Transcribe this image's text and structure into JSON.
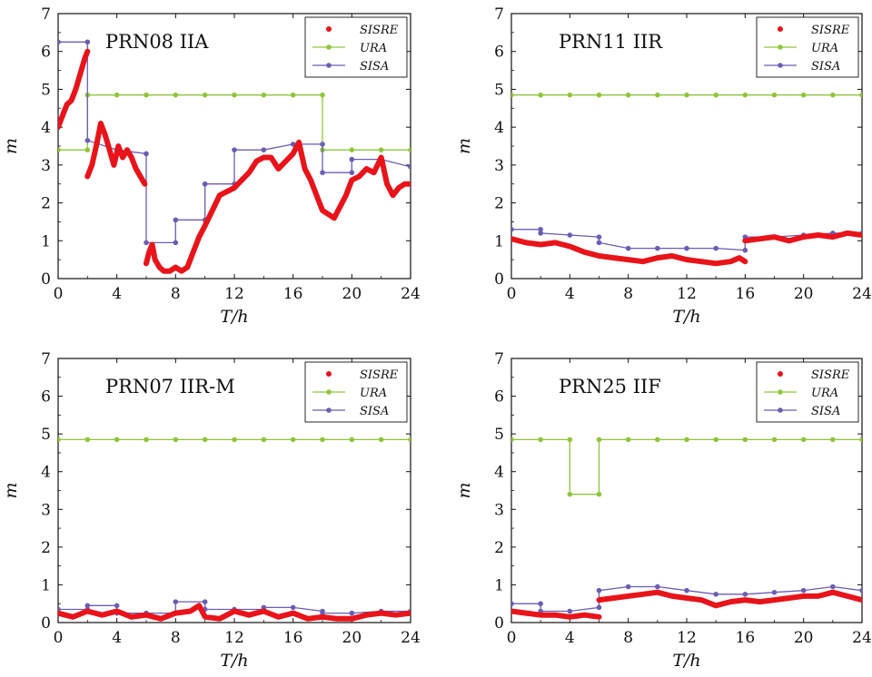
{
  "chart_data": [
    {
      "type": "line",
      "title": "PRN08 IIA",
      "xlabel": "T/h",
      "ylabel": "m",
      "xlim": [
        0,
        24
      ],
      "ylim": [
        0,
        7
      ],
      "xticks": [
        "0",
        "4",
        "8",
        "12",
        "16",
        "20",
        "24"
      ],
      "yticks": [
        "0",
        "1",
        "2",
        "3",
        "4",
        "5",
        "6",
        "7"
      ],
      "legend": "top-right",
      "series": [
        {
          "name": "SISRE",
          "color": "#e8141a",
          "style": "thick",
          "x": [
            0,
            0.3,
            0.6,
            0.9,
            1.2,
            1.5,
            1.8,
            2.0,
            null,
            2.0,
            2.3,
            2.6,
            2.9,
            3.2,
            3.5,
            3.8,
            4.1,
            4.4,
            4.7,
            5.0,
            5.3,
            5.6,
            5.9,
            null,
            6.0,
            6.2,
            6.4,
            6.6,
            6.9,
            7.2,
            7.6,
            8.0,
            8.4,
            8.8,
            9.2,
            9.6,
            10.0,
            10.5,
            11.0,
            11.5,
            12.0,
            12.5,
            13.0,
            13.5,
            14.0,
            14.5,
            15.0,
            15.5,
            16.0,
            16.4,
            16.8,
            17.2,
            17.6,
            18.0,
            18.4,
            18.8,
            19.2,
            19.6,
            20.0,
            20.5,
            21.0,
            21.5,
            22.0,
            22.4,
            22.8,
            23.2,
            23.6,
            24.0
          ],
          "y": [
            4.0,
            4.3,
            4.6,
            4.7,
            5.0,
            5.4,
            5.8,
            6.0,
            null,
            2.7,
            3.0,
            3.5,
            4.1,
            3.8,
            3.4,
            3.0,
            3.5,
            3.2,
            3.4,
            3.2,
            2.9,
            2.7,
            2.5,
            null,
            0.4,
            0.7,
            0.9,
            0.5,
            0.3,
            0.2,
            0.2,
            0.3,
            0.2,
            0.3,
            0.7,
            1.1,
            1.4,
            1.8,
            2.2,
            2.3,
            2.4,
            2.6,
            2.8,
            3.1,
            3.2,
            3.2,
            2.9,
            3.1,
            3.3,
            3.6,
            2.9,
            2.6,
            2.2,
            1.8,
            1.7,
            1.6,
            1.9,
            2.2,
            2.6,
            2.7,
            2.9,
            2.8,
            3.2,
            2.5,
            2.2,
            2.4,
            2.5,
            2.5
          ]
        },
        {
          "name": "URA",
          "color": "#8fc63a",
          "style": "step",
          "x": [
            0,
            2,
            2,
            4,
            6,
            8,
            10,
            12,
            14,
            16,
            18,
            18,
            20,
            22,
            24
          ],
          "y": [
            3.4,
            3.4,
            4.85,
            4.85,
            4.85,
            4.85,
            4.85,
            4.85,
            4.85,
            4.85,
            4.85,
            3.4,
            3.4,
            3.4,
            3.4
          ]
        },
        {
          "name": "SISA",
          "color": "#6b5db3",
          "style": "step",
          "x": [
            0,
            2,
            2,
            4,
            6,
            6,
            8,
            8,
            10,
            10,
            12,
            12,
            14,
            16,
            18,
            18,
            20,
            20,
            22,
            24
          ],
          "y": [
            6.25,
            6.25,
            3.65,
            3.4,
            3.3,
            0.95,
            0.95,
            1.55,
            1.55,
            2.5,
            2.5,
            3.4,
            3.4,
            3.55,
            3.55,
            2.8,
            2.8,
            3.15,
            3.15,
            2.95
          ]
        }
      ]
    },
    {
      "type": "line",
      "title": "PRN11 IIR",
      "xlabel": "T/h",
      "ylabel": "m",
      "xlim": [
        0,
        24
      ],
      "ylim": [
        0,
        7
      ],
      "xticks": [
        "0",
        "4",
        "8",
        "12",
        "16",
        "20",
        "24"
      ],
      "yticks": [
        "0",
        "1",
        "2",
        "3",
        "4",
        "5",
        "6",
        "7"
      ],
      "legend": "top-right",
      "series": [
        {
          "name": "SISRE",
          "color": "#e8141a",
          "style": "thick",
          "x": [
            0,
            1,
            2,
            3,
            4,
            5,
            6,
            7,
            8,
            9,
            10,
            11,
            12,
            13,
            14,
            15,
            15.6,
            16,
            null,
            16,
            17,
            18,
            19,
            20,
            21,
            22,
            23,
            24
          ],
          "y": [
            1.05,
            0.95,
            0.9,
            0.95,
            0.85,
            0.7,
            0.6,
            0.55,
            0.5,
            0.45,
            0.55,
            0.6,
            0.5,
            0.45,
            0.4,
            0.45,
            0.55,
            0.45,
            null,
            1.0,
            1.05,
            1.1,
            1.0,
            1.1,
            1.15,
            1.1,
            1.2,
            1.15
          ]
        },
        {
          "name": "URA",
          "color": "#8fc63a",
          "style": "step",
          "x": [
            0,
            2,
            4,
            6,
            8,
            10,
            12,
            14,
            16,
            18,
            20,
            22,
            24
          ],
          "y": [
            4.85,
            4.85,
            4.85,
            4.85,
            4.85,
            4.85,
            4.85,
            4.85,
            4.85,
            4.85,
            4.85,
            4.85,
            4.85
          ]
        },
        {
          "name": "SISA",
          "color": "#6b5db3",
          "style": "step",
          "x": [
            0,
            2,
            2,
            4,
            6,
            6,
            8,
            10,
            12,
            14,
            16,
            16,
            18,
            20,
            22,
            24
          ],
          "y": [
            1.3,
            1.3,
            1.2,
            1.15,
            1.1,
            0.95,
            0.8,
            0.8,
            0.8,
            0.8,
            0.75,
            1.1,
            1.1,
            1.15,
            1.2,
            1.2
          ]
        }
      ]
    },
    {
      "type": "line",
      "title": "PRN07 IIR-M",
      "xlabel": "T/h",
      "ylabel": "m",
      "xlim": [
        0,
        24
      ],
      "ylim": [
        0,
        7
      ],
      "xticks": [
        "0",
        "4",
        "8",
        "12",
        "16",
        "20",
        "24"
      ],
      "yticks": [
        "0",
        "1",
        "2",
        "3",
        "4",
        "5",
        "6",
        "7"
      ],
      "legend": "top-right",
      "series": [
        {
          "name": "SISRE",
          "color": "#e8141a",
          "style": "thick",
          "x": [
            0,
            1,
            2,
            3,
            4,
            5,
            6,
            7,
            8,
            9,
            9.6,
            10,
            11,
            12,
            13,
            14,
            15,
            16,
            17,
            18,
            19,
            20,
            21,
            22,
            23,
            24
          ],
          "y": [
            0.25,
            0.15,
            0.3,
            0.2,
            0.3,
            0.15,
            0.2,
            0.1,
            0.25,
            0.3,
            0.45,
            0.15,
            0.1,
            0.3,
            0.2,
            0.3,
            0.15,
            0.25,
            0.1,
            0.15,
            0.1,
            0.1,
            0.2,
            0.25,
            0.2,
            0.25
          ]
        },
        {
          "name": "URA",
          "color": "#8fc63a",
          "style": "step",
          "x": [
            0,
            2,
            4,
            6,
            8,
            10,
            12,
            14,
            16,
            18,
            20,
            22,
            24
          ],
          "y": [
            4.85,
            4.85,
            4.85,
            4.85,
            4.85,
            4.85,
            4.85,
            4.85,
            4.85,
            4.85,
            4.85,
            4.85,
            4.85
          ]
        },
        {
          "name": "SISA",
          "color": "#6b5db3",
          "style": "step",
          "x": [
            0,
            2,
            2,
            4,
            4,
            6,
            8,
            8,
            10,
            10,
            12,
            14,
            14,
            16,
            18,
            18,
            20,
            22,
            24
          ],
          "y": [
            0.35,
            0.35,
            0.45,
            0.45,
            0.25,
            0.25,
            0.25,
            0.55,
            0.55,
            0.35,
            0.35,
            0.35,
            0.4,
            0.4,
            0.3,
            0.25,
            0.25,
            0.3,
            0.3
          ]
        }
      ]
    },
    {
      "type": "line",
      "title": "PRN25 IIF",
      "xlabel": "T/h",
      "ylabel": "m",
      "xlim": [
        0,
        24
      ],
      "ylim": [
        0,
        7
      ],
      "xticks": [
        "0",
        "4",
        "8",
        "12",
        "16",
        "20",
        "24"
      ],
      "yticks": [
        "0",
        "1",
        "2",
        "3",
        "4",
        "5",
        "6",
        "7"
      ],
      "legend": "top-right",
      "series": [
        {
          "name": "SISRE",
          "color": "#e8141a",
          "style": "thick",
          "x": [
            0,
            1,
            2,
            3,
            4,
            5,
            6,
            null,
            6,
            7,
            8,
            9,
            10,
            11,
            12,
            13,
            14,
            15,
            16,
            17,
            18,
            19,
            20,
            21,
            22,
            23,
            24
          ],
          "y": [
            0.3,
            0.25,
            0.2,
            0.2,
            0.15,
            0.2,
            0.15,
            null,
            0.6,
            0.65,
            0.7,
            0.75,
            0.8,
            0.7,
            0.65,
            0.6,
            0.45,
            0.55,
            0.6,
            0.55,
            0.6,
            0.65,
            0.7,
            0.7,
            0.8,
            0.7,
            0.6
          ]
        },
        {
          "name": "URA",
          "color": "#8fc63a",
          "style": "step",
          "x": [
            0,
            2,
            4,
            4,
            6,
            6,
            8,
            10,
            12,
            14,
            16,
            18,
            20,
            22,
            24
          ],
          "y": [
            4.85,
            4.85,
            4.85,
            3.4,
            3.4,
            4.85,
            4.85,
            4.85,
            4.85,
            4.85,
            4.85,
            4.85,
            4.85,
            4.85,
            4.85
          ]
        },
        {
          "name": "SISA",
          "color": "#6b5db3",
          "style": "step",
          "x": [
            0,
            2,
            2,
            4,
            6,
            6,
            8,
            10,
            12,
            14,
            16,
            18,
            20,
            22,
            24
          ],
          "y": [
            0.5,
            0.5,
            0.3,
            0.3,
            0.4,
            0.85,
            0.95,
            0.95,
            0.85,
            0.75,
            0.75,
            0.8,
            0.85,
            0.95,
            0.85
          ]
        }
      ]
    }
  ]
}
